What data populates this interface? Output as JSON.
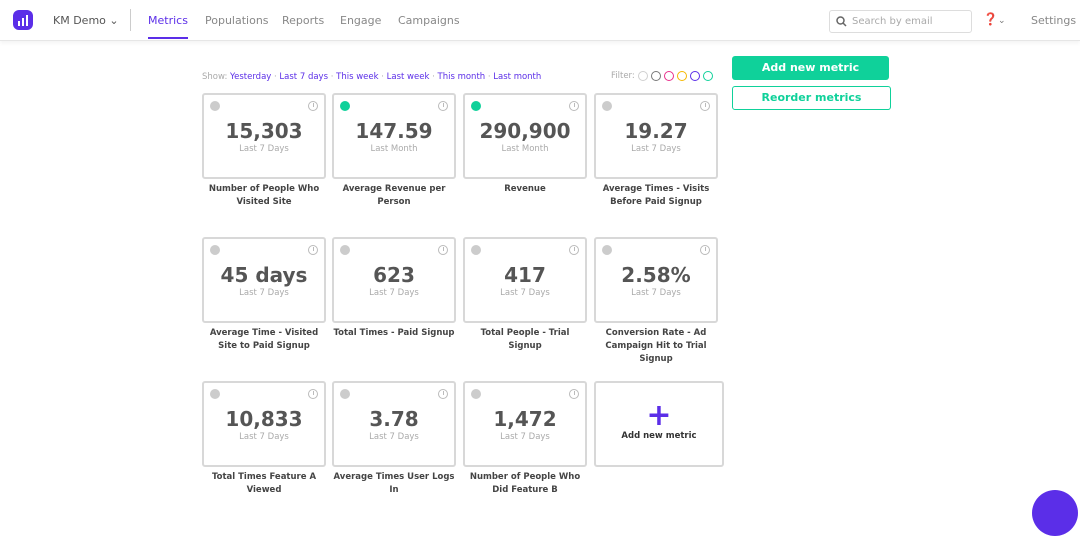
{
  "header": {
    "org": "KM Demo",
    "nav": [
      "Metrics",
      "Populations",
      "Reports",
      "Engage",
      "Campaigns"
    ],
    "active": "Metrics",
    "search_placeholder": "Search by email",
    "settings": "Settings"
  },
  "show": {
    "label": "Show:",
    "options": [
      "Yesterday",
      "Last 7 days",
      "This week",
      "Last week",
      "This month",
      "Last month"
    ]
  },
  "filter": {
    "label": "Filter:",
    "colors": [
      "#d0d0d0",
      "#777777",
      "#e8308c",
      "#f5b800",
      "#5b2ee8",
      "#0fd19a"
    ]
  },
  "actions": {
    "add": "Add new metric",
    "reorder": "Reorder metrics"
  },
  "accent": "#5b2ee8",
  "green": "#0fd19a",
  "metrics": [
    {
      "value": "15,303",
      "period": "Last 7 Days",
      "label": "Number of People Who Visited Site",
      "active": false
    },
    {
      "value": "147.59",
      "period": "Last Month",
      "label": "Average Revenue per Person",
      "active": true
    },
    {
      "value": "290,900",
      "period": "Last Month",
      "label": "Revenue",
      "active": true
    },
    {
      "value": "19.27",
      "period": "Last 7 Days",
      "label": "Average Times - Visits Before Paid Signup",
      "active": false
    },
    {
      "value": "45 days",
      "period": "Last 7 Days",
      "label": "Average Time - Visited Site to Paid Signup",
      "active": false
    },
    {
      "value": "623",
      "period": "Last 7 Days",
      "label": "Total Times - Paid Signup",
      "active": false
    },
    {
      "value": "417",
      "period": "Last 7 Days",
      "label": "Total People - Trial Signup",
      "active": false
    },
    {
      "value": "2.58%",
      "period": "Last 7 Days",
      "label": "Conversion Rate - Ad Campaign Hit to Trial Signup",
      "active": false
    },
    {
      "value": "10,833",
      "period": "Last 7 Days",
      "label": "Total Times Feature A Viewed",
      "active": false
    },
    {
      "value": "3.78",
      "period": "Last 7 Days",
      "label": "Average Times User Logs In",
      "active": false
    },
    {
      "value": "1,472",
      "period": "Last 7 Days",
      "label": "Number of People Who Did Feature B",
      "active": false
    }
  ],
  "add_card": {
    "icon": "plus-icon",
    "label": "Add new metric"
  }
}
